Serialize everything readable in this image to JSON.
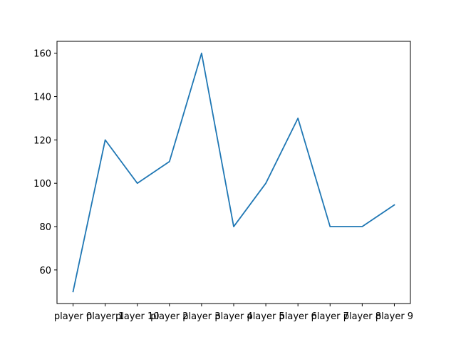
{
  "chart_data": {
    "type": "line",
    "title": "",
    "xlabel": "",
    "ylabel": "",
    "categories": [
      "player 0",
      "player 1",
      "player 10",
      "player 2",
      "player 3",
      "player 4",
      "player 5",
      "player 6",
      "player 7",
      "player 8",
      "player 9"
    ],
    "series": [
      {
        "values": [
          50,
          120,
          100,
          110,
          160,
          80,
          100,
          130,
          80,
          80,
          90
        ],
        "color": "#1f77b4"
      }
    ],
    "ylim": [
      44.5,
      165.5
    ],
    "yticks": [
      60,
      80,
      100,
      120,
      140,
      160
    ],
    "grid": false,
    "legend": "none"
  }
}
